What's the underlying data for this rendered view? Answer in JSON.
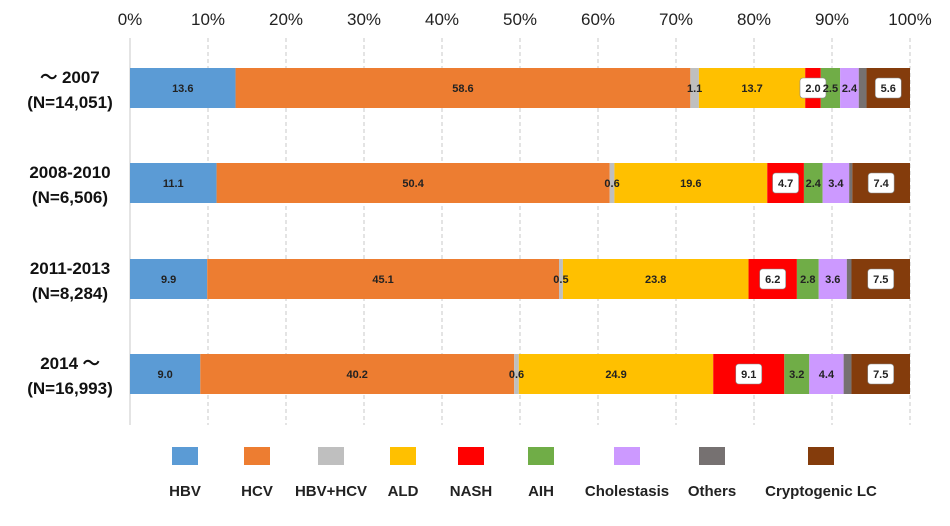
{
  "chart_data": {
    "type": "bar",
    "orientation": "horizontal",
    "stacked": true,
    "normalized_percent": true,
    "xlim": [
      0,
      100
    ],
    "x_ticks": [
      "0%",
      "10%",
      "20%",
      "30%",
      "40%",
      "50%",
      "60%",
      "70%",
      "80%",
      "90%",
      "100%"
    ],
    "grid": "vertical dashed",
    "legend_position": "bottom",
    "categories": [
      {
        "line1": "～ 2007",
        "line2": "(N=14,051)"
      },
      {
        "line1": "2008-2010",
        "line2": "(N=6,506)"
      },
      {
        "line1": "2011-2013",
        "line2": "(N=8,284)"
      },
      {
        "line1": "2014 ～",
        "line2": "(N=16,993)"
      }
    ],
    "series": [
      {
        "name": "HBV",
        "color": "#5B9BD5",
        "values": [
          13.6,
          11.1,
          9.9,
          9.0
        ],
        "labels": [
          "13.6",
          "11.1",
          "9.9",
          "9.0"
        ],
        "boxed": false
      },
      {
        "name": "HCV",
        "color": "#ED7D31",
        "values": [
          58.6,
          50.4,
          45.1,
          40.2
        ],
        "labels": [
          "58.6",
          "50.4",
          "45.1",
          "40.2"
        ],
        "boxed": false
      },
      {
        "name": "HBV+HCV",
        "color": "#BFBFBF",
        "values": [
          1.1,
          0.6,
          0.5,
          0.6
        ],
        "labels": [
          "1.1",
          "0.6",
          "0.5",
          "0.6"
        ],
        "boxed": false
      },
      {
        "name": "ALD",
        "color": "#FFC000",
        "values": [
          13.7,
          19.6,
          23.8,
          24.9
        ],
        "labels": [
          "13.7",
          "19.6",
          "23.8",
          "24.9"
        ],
        "boxed": false
      },
      {
        "name": "NASH",
        "color": "#FF0000",
        "values": [
          2.0,
          4.7,
          6.2,
          9.1
        ],
        "labels": [
          "2.0",
          "4.7",
          "6.2",
          "9.1"
        ],
        "boxed": true
      },
      {
        "name": "AIH",
        "color": "#70AD47",
        "values": [
          2.5,
          2.4,
          2.8,
          3.2
        ],
        "labels": [
          "2.5",
          "2.4",
          "2.8",
          "3.2"
        ],
        "boxed": false
      },
      {
        "name": "Cholestasis",
        "color": "#CC99FF",
        "values": [
          2.4,
          3.4,
          3.6,
          4.4
        ],
        "labels": [
          "2.4",
          "3.4",
          "3.6",
          "4.4"
        ],
        "boxed": false
      },
      {
        "name": "Others",
        "color": "#767171",
        "values": [
          1.0,
          0.4,
          0.6,
          1.0
        ],
        "labels": [
          "",
          "",
          "",
          ""
        ],
        "boxed": false
      },
      {
        "name": "Cryptogenic LC",
        "color": "#843C0C",
        "values": [
          5.6,
          7.4,
          7.5,
          7.5
        ],
        "labels": [
          "5.6",
          "7.4",
          "7.5",
          "7.5"
        ],
        "boxed": true
      }
    ]
  }
}
